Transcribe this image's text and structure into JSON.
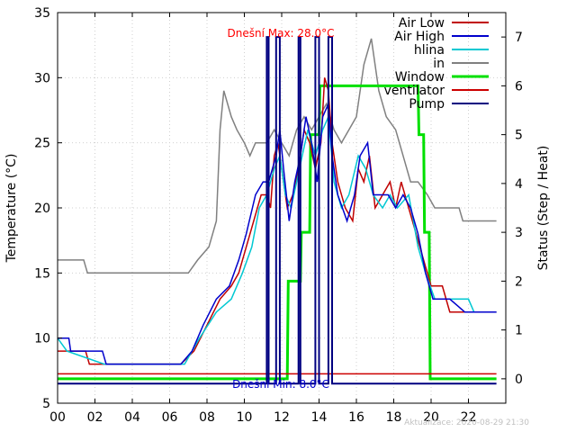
{
  "chart_data": {
    "type": "line",
    "xlabel": "",
    "ylabel": "Temperature (°C)",
    "y2label": "Status (Step / Heat)",
    "xlim": [
      0,
      24
    ],
    "ylim": [
      5,
      35
    ],
    "y2lim": [
      -0.5,
      7.5
    ],
    "x_ticks": [
      "00",
      "02",
      "04",
      "06",
      "08",
      "10",
      "12",
      "14",
      "16",
      "18",
      "20",
      "22"
    ],
    "y_ticks": [
      "5",
      "10",
      "15",
      "20",
      "25",
      "30",
      "35"
    ],
    "y2_ticks": [
      "0",
      "1",
      "2",
      "3",
      "4",
      "5",
      "6",
      "7"
    ],
    "grid": true,
    "legend_position": "top-right",
    "annotations": {
      "max_label": "Dnešní Max: 28.0°C",
      "min_label": "Dnešní Min: 8.0°C",
      "updated": "Aktualizace: 2020-08-29 21:30"
    },
    "series": [
      {
        "name": "Air Low",
        "color": "#c00000",
        "axis": "y",
        "points": [
          [
            0,
            9
          ],
          [
            1.5,
            9
          ],
          [
            1.7,
            8
          ],
          [
            4.6,
            8
          ],
          [
            6.6,
            8
          ],
          [
            7.3,
            9
          ],
          [
            8.0,
            11
          ],
          [
            8.7,
            13
          ],
          [
            9.3,
            14
          ],
          [
            9.7,
            15
          ],
          [
            10.1,
            17
          ],
          [
            10.5,
            19
          ],
          [
            10.9,
            21
          ],
          [
            11.2,
            21
          ],
          [
            11.4,
            20
          ],
          [
            11.6,
            24
          ],
          [
            11.8,
            25
          ],
          [
            12.0,
            23
          ],
          [
            12.3,
            20
          ],
          [
            12.6,
            21
          ],
          [
            12.9,
            23
          ],
          [
            13.2,
            26
          ],
          [
            13.5,
            25
          ],
          [
            13.8,
            23
          ],
          [
            14.1,
            25
          ],
          [
            14.3,
            30
          ],
          [
            14.5,
            29
          ],
          [
            14.7,
            25
          ],
          [
            15.0,
            22
          ],
          [
            15.4,
            20
          ],
          [
            15.8,
            19
          ],
          [
            16.1,
            23
          ],
          [
            16.4,
            22
          ],
          [
            16.7,
            24
          ],
          [
            17.0,
            20
          ],
          [
            17.4,
            21
          ],
          [
            17.8,
            22
          ],
          [
            18.1,
            20
          ],
          [
            18.4,
            22
          ],
          [
            18.8,
            20
          ],
          [
            19.2,
            18
          ],
          [
            19.6,
            16
          ],
          [
            20.0,
            14
          ],
          [
            20.6,
            14
          ],
          [
            21.0,
            12
          ],
          [
            21.5,
            12
          ],
          [
            21.8,
            12
          ],
          [
            22.5,
            12
          ],
          [
            23.5,
            12
          ]
        ]
      },
      {
        "name": "Air High",
        "color": "#0000cc",
        "axis": "y",
        "points": [
          [
            0,
            10
          ],
          [
            0.6,
            10
          ],
          [
            0.7,
            9
          ],
          [
            2.4,
            9
          ],
          [
            2.6,
            8
          ],
          [
            6.6,
            8
          ],
          [
            7.2,
            9
          ],
          [
            7.8,
            11
          ],
          [
            8.5,
            13
          ],
          [
            9.2,
            14
          ],
          [
            9.7,
            16
          ],
          [
            10.1,
            18
          ],
          [
            10.6,
            21
          ],
          [
            11.0,
            22
          ],
          [
            11.3,
            22
          ],
          [
            11.7,
            24
          ],
          [
            11.9,
            26
          ],
          [
            12.1,
            23
          ],
          [
            12.4,
            19
          ],
          [
            12.7,
            22
          ],
          [
            13.0,
            24
          ],
          [
            13.3,
            27
          ],
          [
            13.6,
            25
          ],
          [
            13.9,
            22
          ],
          [
            14.2,
            27
          ],
          [
            14.5,
            28
          ],
          [
            14.7,
            24
          ],
          [
            15.0,
            21
          ],
          [
            15.5,
            19
          ],
          [
            15.9,
            21
          ],
          [
            16.2,
            24
          ],
          [
            16.6,
            25
          ],
          [
            16.9,
            21
          ],
          [
            17.3,
            21
          ],
          [
            17.7,
            21
          ],
          [
            18.1,
            20
          ],
          [
            18.5,
            21
          ],
          [
            18.9,
            20
          ],
          [
            19.3,
            18
          ],
          [
            19.7,
            15
          ],
          [
            20.1,
            13
          ],
          [
            20.6,
            13
          ],
          [
            21.0,
            13
          ],
          [
            21.8,
            12
          ],
          [
            22.2,
            12
          ],
          [
            23.5,
            12
          ]
        ]
      },
      {
        "name": "hlina",
        "color": "#00c8d2",
        "axis": "y",
        "points": [
          [
            0,
            10
          ],
          [
            0.5,
            9
          ],
          [
            2.5,
            8
          ],
          [
            6.8,
            8
          ],
          [
            7.6,
            10
          ],
          [
            8.5,
            12
          ],
          [
            9.3,
            13
          ],
          [
            9.9,
            15
          ],
          [
            10.4,
            17
          ],
          [
            10.8,
            20
          ],
          [
            11.2,
            21
          ],
          [
            11.6,
            23
          ],
          [
            11.9,
            24
          ],
          [
            12.2,
            21
          ],
          [
            12.5,
            20
          ],
          [
            12.8,
            22
          ],
          [
            13.1,
            24
          ],
          [
            13.4,
            26
          ],
          [
            13.8,
            24
          ],
          [
            14.2,
            26
          ],
          [
            14.5,
            27
          ],
          [
            14.8,
            22
          ],
          [
            15.2,
            20
          ],
          [
            15.6,
            21
          ],
          [
            16.1,
            24
          ],
          [
            16.5,
            23
          ],
          [
            16.9,
            21
          ],
          [
            17.4,
            20
          ],
          [
            17.8,
            21
          ],
          [
            18.2,
            20
          ],
          [
            18.8,
            21
          ],
          [
            19.3,
            17
          ],
          [
            19.7,
            15
          ],
          [
            20.2,
            13
          ],
          [
            21.0,
            13
          ],
          [
            22.0,
            13
          ],
          [
            22.3,
            12
          ],
          [
            23.5,
            12
          ]
        ]
      },
      {
        "name": "in",
        "color": "#808080",
        "axis": "y",
        "points": [
          [
            0,
            16
          ],
          [
            1.4,
            16
          ],
          [
            1.6,
            15
          ],
          [
            5.0,
            15
          ],
          [
            7.0,
            15
          ],
          [
            7.5,
            16
          ],
          [
            8.1,
            17
          ],
          [
            8.5,
            19
          ],
          [
            8.7,
            26
          ],
          [
            8.9,
            29
          ],
          [
            9.3,
            27
          ],
          [
            9.6,
            26
          ],
          [
            10.0,
            25
          ],
          [
            10.3,
            24
          ],
          [
            10.6,
            25
          ],
          [
            11.2,
            25
          ],
          [
            11.6,
            26
          ],
          [
            12.0,
            25
          ],
          [
            12.4,
            24
          ],
          [
            12.8,
            26
          ],
          [
            13.2,
            27
          ],
          [
            13.6,
            26
          ],
          [
            14.0,
            27
          ],
          [
            14.4,
            28
          ],
          [
            14.8,
            26
          ],
          [
            15.2,
            25
          ],
          [
            15.6,
            26
          ],
          [
            16.0,
            27
          ],
          [
            16.4,
            31
          ],
          [
            16.8,
            33
          ],
          [
            17.2,
            29
          ],
          [
            17.6,
            27
          ],
          [
            18.1,
            26
          ],
          [
            18.5,
            24
          ],
          [
            18.9,
            22
          ],
          [
            19.3,
            22
          ],
          [
            19.8,
            21
          ],
          [
            20.2,
            20
          ],
          [
            21.5,
            20
          ],
          [
            21.7,
            19
          ],
          [
            22.2,
            19
          ],
          [
            23.5,
            19
          ]
        ]
      },
      {
        "name": "Window",
        "color": "#00e000",
        "axis": "y2",
        "points": [
          [
            0,
            0
          ],
          [
            12.3,
            0
          ],
          [
            12.35,
            2
          ],
          [
            13.0,
            2
          ],
          [
            13.05,
            3
          ],
          [
            13.5,
            3
          ],
          [
            13.55,
            5
          ],
          [
            14.0,
            5
          ],
          [
            14.05,
            6
          ],
          [
            19.3,
            6
          ],
          [
            19.35,
            5
          ],
          [
            19.6,
            5
          ],
          [
            19.65,
            3
          ],
          [
            19.9,
            3
          ],
          [
            19.95,
            0
          ],
          [
            23.5,
            0
          ]
        ]
      },
      {
        "name": "ventilator",
        "color": "#cc0000",
        "axis": "y2",
        "points": [
          [
            0,
            0.1
          ],
          [
            23.5,
            0.1
          ]
        ]
      },
      {
        "name": "Pump",
        "color": "#000080",
        "axis": "y2",
        "pulses": [
          [
            11.2,
            11.3
          ],
          [
            11.7,
            11.9
          ],
          [
            12.9,
            13.0
          ],
          [
            13.8,
            14.0
          ],
          [
            14.5,
            14.7
          ]
        ],
        "on": 7,
        "off": -0.1,
        "x_end": 23.5
      }
    ]
  }
}
